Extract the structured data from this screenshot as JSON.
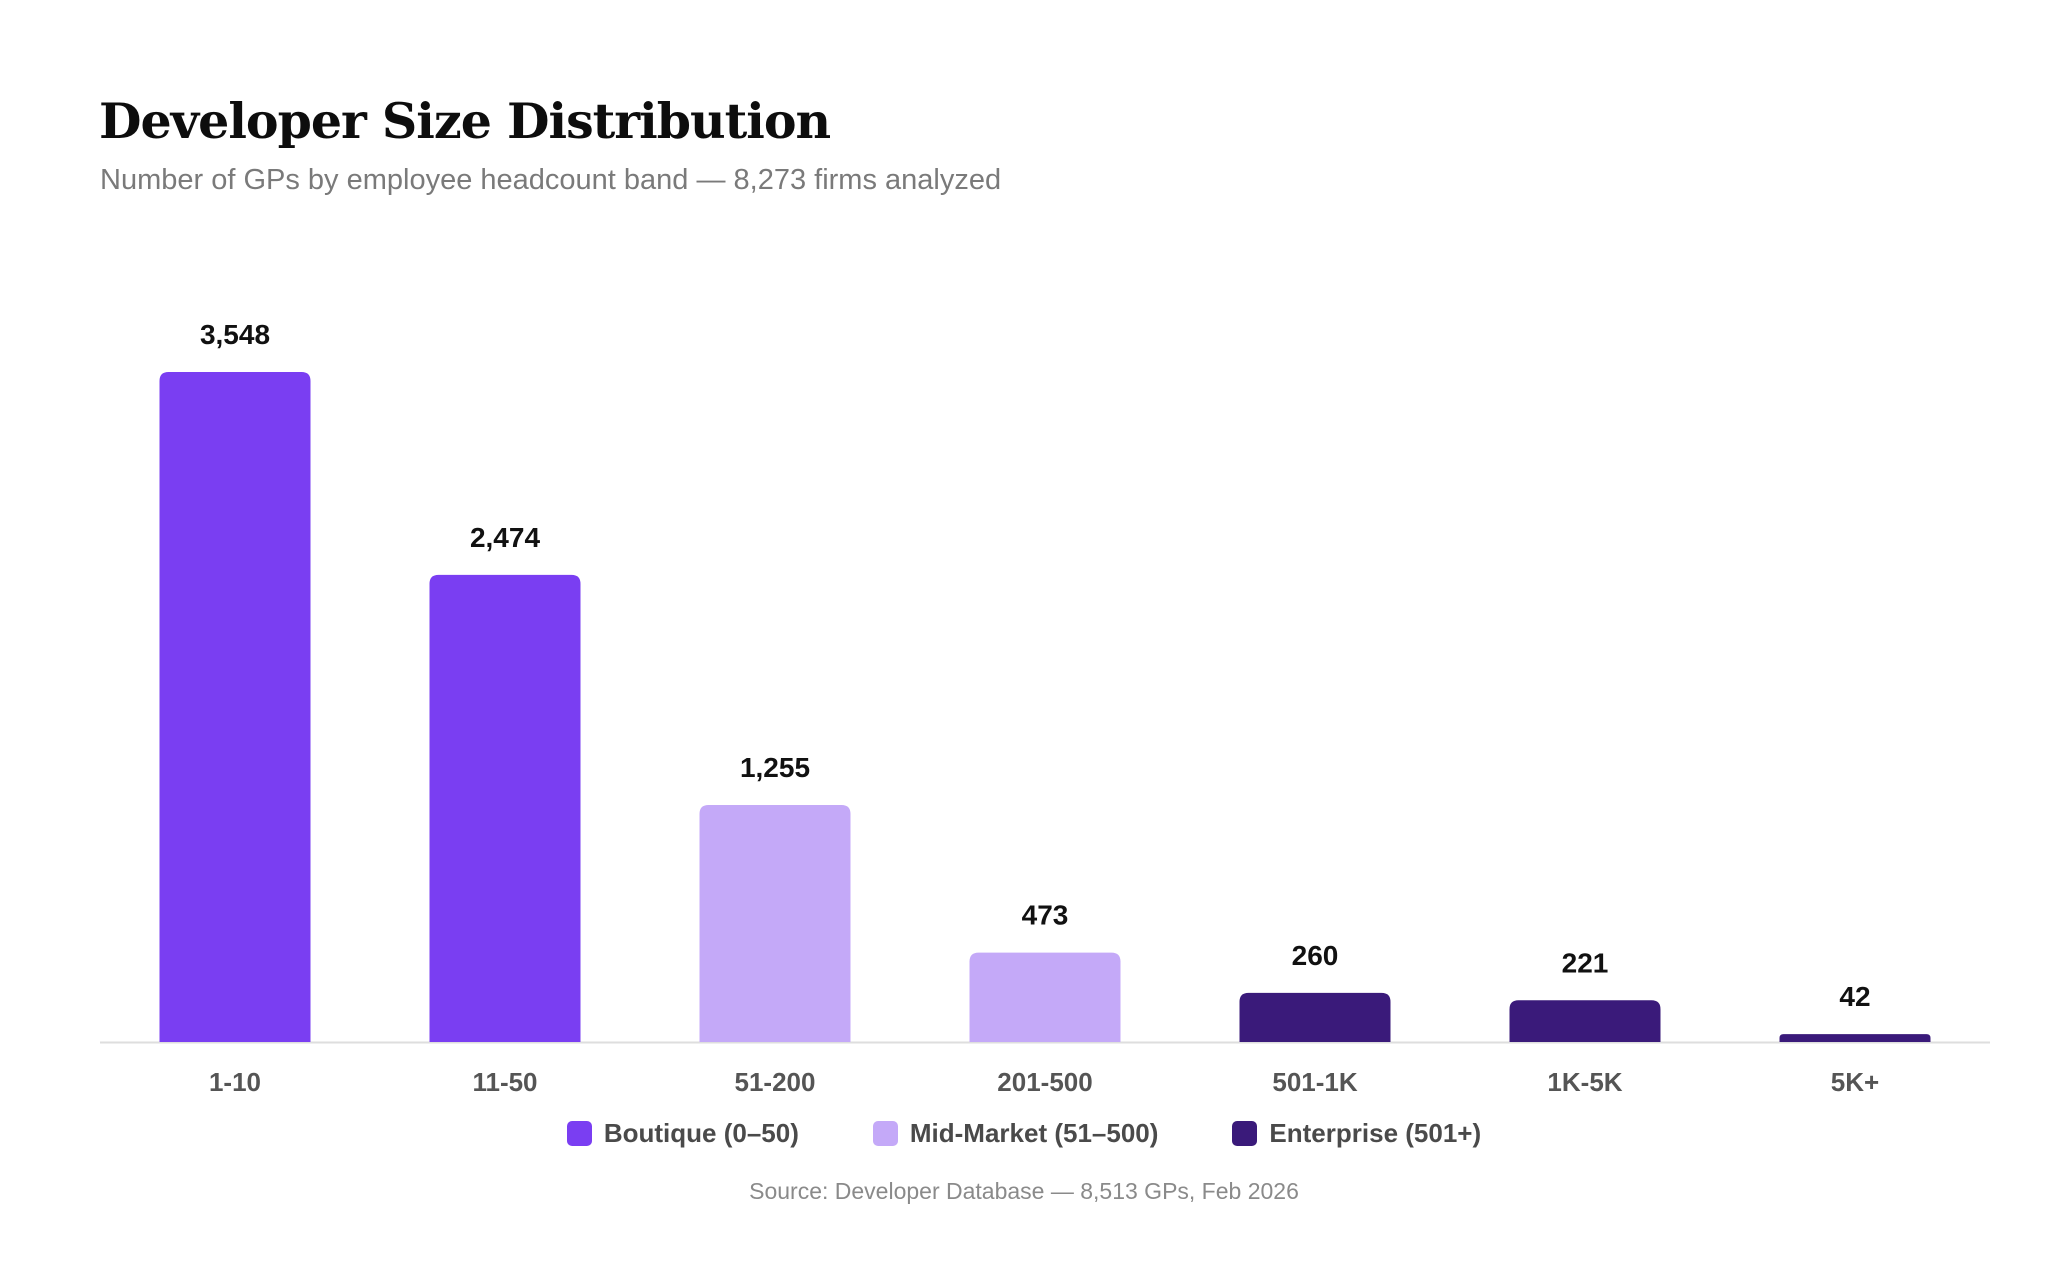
{
  "chart_data": {
    "type": "bar",
    "title": "Developer Size Distribution",
    "subtitle": "Number of GPs by employee headcount band — 8,273 firms analyzed",
    "categories": [
      "1-10",
      "11-50",
      "51-200",
      "201-500",
      "501-1K",
      "1K-5K",
      "5K+"
    ],
    "values": [
      3548,
      2474,
      1255,
      473,
      260,
      221,
      42
    ],
    "value_labels": [
      "3,548",
      "2,474",
      "1,255",
      "473",
      "260",
      "221",
      "42"
    ],
    "groups": [
      "boutique",
      "boutique",
      "mid_market",
      "mid_market",
      "enterprise",
      "enterprise",
      "enterprise"
    ],
    "ylim": [
      0,
      3548
    ],
    "grid": false,
    "legend_position": "bottom-center",
    "legend": [
      {
        "key": "boutique",
        "label": "Boutique (0–50)",
        "color": "#7a3ef2"
      },
      {
        "key": "mid_market",
        "label": "Mid-Market (51–500)",
        "color": "#c4a9f8"
      },
      {
        "key": "enterprise",
        "label": "Enterprise (501+)",
        "color": "#3a1a7a"
      }
    ],
    "source": "Source: Developer Database — 8,513 GPs, Feb 2026"
  },
  "colors": {
    "axis": "#dedede",
    "value_label": "#111111",
    "tick_label": "#555555"
  }
}
